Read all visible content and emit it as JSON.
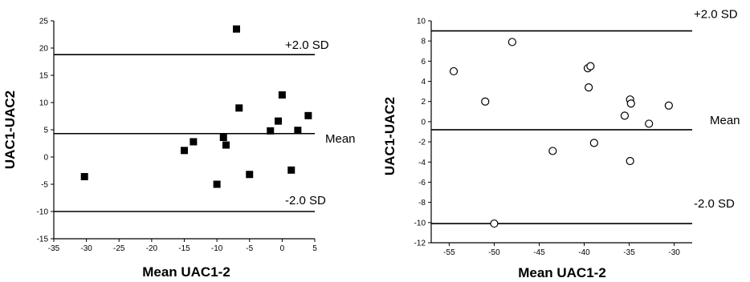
{
  "chart_data": [
    {
      "type": "scatter",
      "title": "",
      "xlabel": "Mean UAC1-2",
      "ylabel": "UAC1-UAC2",
      "xlim": [
        -35,
        5
      ],
      "ylim": [
        -15,
        25
      ],
      "xticks": [
        -35,
        -30,
        -25,
        -20,
        -15,
        -10,
        -5,
        0,
        5
      ],
      "yticks": [
        -15,
        -10,
        -5,
        0,
        5,
        10,
        15,
        20,
        25
      ],
      "marker": "filled-square",
      "grid": false,
      "reference_lines": [
        {
          "label": "+2.0 SD",
          "y": 18.8
        },
        {
          "label": "Mean",
          "y": 4.3
        },
        {
          "label": "-2.0 SD",
          "y": -10.0
        }
      ],
      "points": [
        {
          "x": -30.3,
          "y": -3.6
        },
        {
          "x": -15.0,
          "y": 1.2
        },
        {
          "x": -13.6,
          "y": 2.8
        },
        {
          "x": -10.0,
          "y": -5.0
        },
        {
          "x": -9.0,
          "y": 3.6
        },
        {
          "x": -8.6,
          "y": 2.2
        },
        {
          "x": -7.0,
          "y": 23.5
        },
        {
          "x": -6.6,
          "y": 9.0
        },
        {
          "x": -5.0,
          "y": -3.2
        },
        {
          "x": -1.8,
          "y": 4.8
        },
        {
          "x": -0.6,
          "y": 6.6
        },
        {
          "x": 0.0,
          "y": 11.4
        },
        {
          "x": 1.4,
          "y": -2.4
        },
        {
          "x": 2.4,
          "y": 4.9
        },
        {
          "x": 4.0,
          "y": 7.6
        }
      ]
    },
    {
      "type": "scatter",
      "title": "",
      "xlabel": "Mean UAC1-2",
      "ylabel": "UAC1-UAC2",
      "xlim": [
        -57,
        -28
      ],
      "ylim": [
        -12,
        10
      ],
      "xticks": [
        -55,
        -50,
        -45,
        -40,
        -35,
        -30
      ],
      "yticks": [
        -12,
        -10,
        -8,
        -6,
        -4,
        -2,
        0,
        2,
        4,
        6,
        8,
        10
      ],
      "marker": "open-circle",
      "grid": false,
      "reference_lines": [
        {
          "label": "+2.0 SD",
          "y": 9.0
        },
        {
          "label": "Mean",
          "y": -0.8
        },
        {
          "label": "-2.0 SD",
          "y": -10.1
        }
      ],
      "points": [
        {
          "x": -54.5,
          "y": 5.0
        },
        {
          "x": -51.0,
          "y": 2.0
        },
        {
          "x": -50.0,
          "y": -10.1
        },
        {
          "x": -48.0,
          "y": 7.9
        },
        {
          "x": -43.5,
          "y": -2.9
        },
        {
          "x": -39.6,
          "y": 5.3
        },
        {
          "x": -39.3,
          "y": 5.5
        },
        {
          "x": -39.5,
          "y": 3.4
        },
        {
          "x": -38.9,
          "y": -2.1
        },
        {
          "x": -35.5,
          "y": 0.6
        },
        {
          "x": -34.9,
          "y": 2.2
        },
        {
          "x": -34.8,
          "y": 1.8
        },
        {
          "x": -34.9,
          "y": -3.9
        },
        {
          "x": -32.8,
          "y": -0.2
        },
        {
          "x": -30.6,
          "y": 1.6
        }
      ]
    }
  ]
}
